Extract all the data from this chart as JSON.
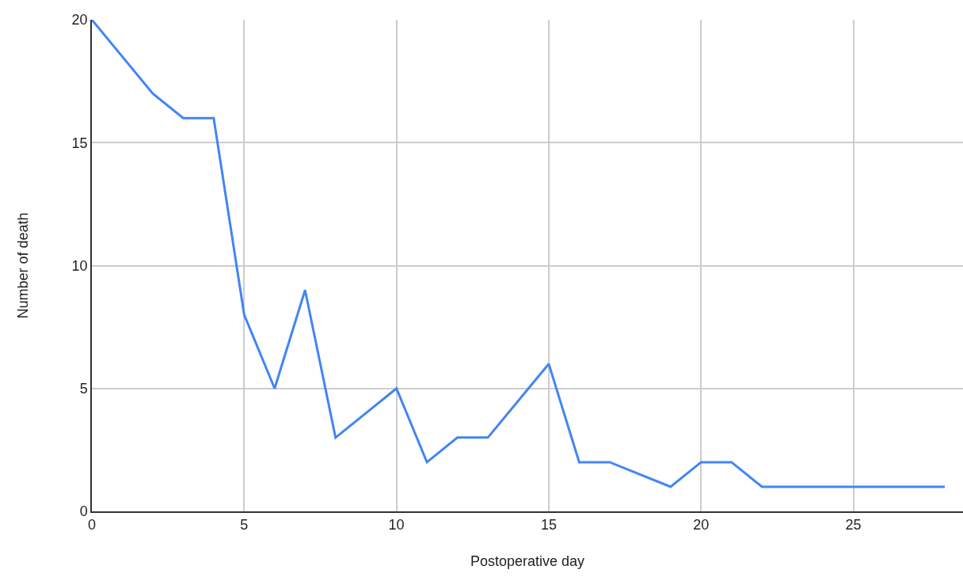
{
  "chart_data": {
    "type": "line",
    "xlabel": "Postoperative day",
    "ylabel": "Number of death",
    "x": [
      0,
      2,
      3,
      4,
      5,
      6,
      7,
      8,
      10,
      11,
      12,
      13,
      15,
      16,
      17,
      19,
      20,
      21,
      22,
      23,
      24,
      25,
      26,
      27,
      28
    ],
    "series": [
      {
        "color": "#4285f4",
        "values": [
          20,
          17,
          16,
          16,
          8,
          5,
          9,
          3,
          5,
          2,
          3,
          3,
          6,
          2,
          2,
          1,
          2,
          2,
          1,
          1,
          1,
          1,
          1,
          1,
          1
        ]
      }
    ],
    "xlim": [
      0,
      28.6
    ],
    "xticks": [
      0,
      5,
      10,
      15,
      20,
      25
    ],
    "ylim": [
      0,
      20
    ],
    "yticks": [
      0,
      5,
      10,
      15,
      20
    ],
    "grid": true,
    "marker": "none",
    "line_style": "solid"
  }
}
